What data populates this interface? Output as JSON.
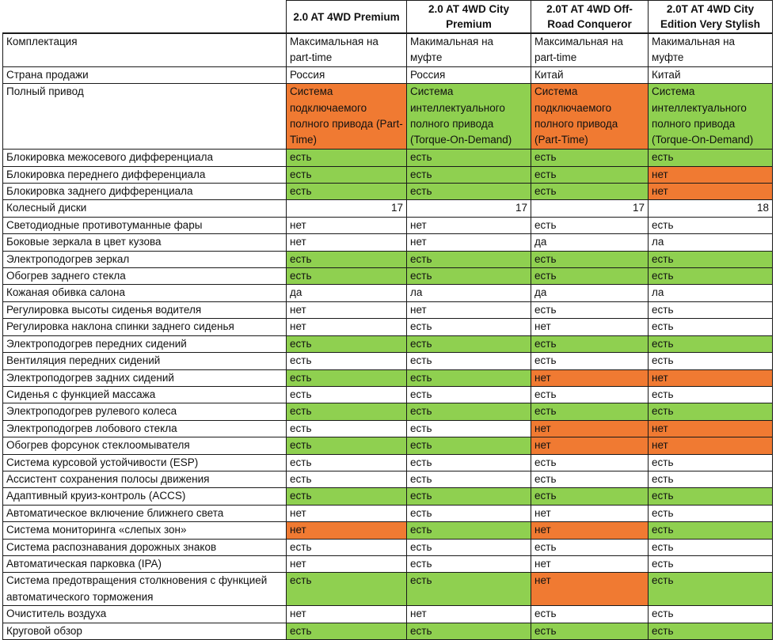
{
  "colors": {
    "green": "#8fd050",
    "orange": "#f07a32"
  },
  "headers": [
    "2.0 AT 4WD Premium",
    "2.0 AT 4WD City Premium",
    "2.0T AT 4WD Off-Road Conqueror",
    "2.0T AT 4WD City Edition Very Stylish"
  ],
  "rows": [
    {
      "label": "Комплектация",
      "cells": [
        "Максимальная на part-time",
        "Макимальная на муфте",
        "Максимальная на part-time",
        "Макимальная на муфте"
      ],
      "colors": [
        "",
        "",
        "",
        ""
      ]
    },
    {
      "label": "Страна продажи",
      "cells": [
        "Россия",
        "Россия",
        "Китай",
        "Китай"
      ],
      "colors": [
        "",
        "",
        "",
        ""
      ]
    },
    {
      "label": "Полный привод",
      "cells": [
        "Система подключаемого полного привода (Part-Time)",
        "Система интеллектуального полного привода (Torque-On-Demand)",
        "Система подключаемого полного привода (Part-Time)",
        "Система интеллектуального полного привода (Torque-On-Demand)"
      ],
      "colors": [
        "o",
        "g",
        "o",
        "g"
      ]
    },
    {
      "label": "Блокировка межосевого дифференциала",
      "cells": [
        "есть",
        "есть",
        "есть",
        "есть"
      ],
      "colors": [
        "g",
        "g",
        "g",
        "g"
      ]
    },
    {
      "label": "Блокировка переднего дифференциала",
      "cells": [
        "есть",
        "есть",
        "есть",
        "нет"
      ],
      "colors": [
        "g",
        "g",
        "g",
        "o"
      ]
    },
    {
      "label": "Блокировка заднего дифференциала",
      "cells": [
        "есть",
        "есть",
        "есть",
        "нет"
      ],
      "colors": [
        "g",
        "g",
        "g",
        "o"
      ]
    },
    {
      "label": "Колесный диски",
      "cells": [
        "17",
        "17",
        "17",
        "18"
      ],
      "colors": [
        "",
        "",
        "",
        ""
      ]
    },
    {
      "label": "Светодиодные противотуманные фары",
      "cells": [
        "нет",
        "нет",
        "есть",
        "есть"
      ],
      "colors": [
        "",
        "",
        "",
        ""
      ]
    },
    {
      "label": "Боковые зеркала в цвет кузова",
      "cells": [
        "нет",
        "нет",
        "да",
        "ла"
      ],
      "colors": [
        "",
        "",
        "",
        ""
      ]
    },
    {
      "label": "Электроподогрев зеркал",
      "cells": [
        "есть",
        "есть",
        "есть",
        "есть"
      ],
      "colors": [
        "g",
        "g",
        "g",
        "g"
      ]
    },
    {
      "label": "Обогрев заднего стекла",
      "cells": [
        "есть",
        "есть",
        "есть",
        "есть"
      ],
      "colors": [
        "g",
        "g",
        "g",
        "g"
      ]
    },
    {
      "label": "Кожаная обивка салона",
      "cells": [
        "да",
        "ла",
        "да",
        "ла"
      ],
      "colors": [
        "",
        "",
        "",
        ""
      ]
    },
    {
      "label": "Регулировка высоты сиденья водителя",
      "cells": [
        "нет",
        "нет",
        "есть",
        "есть"
      ],
      "colors": [
        "",
        "",
        "",
        ""
      ]
    },
    {
      "label": "Регулировка наклона спинки заднего сиденья",
      "cells": [
        "нет",
        "есть",
        "нет",
        "есть"
      ],
      "colors": [
        "",
        "",
        "",
        ""
      ]
    },
    {
      "label": "Электроподогрев передних сидений",
      "cells": [
        "есть",
        "есть",
        "есть",
        "есть"
      ],
      "colors": [
        "g",
        "g",
        "g",
        "g"
      ]
    },
    {
      "label": "Вентиляция передних сидений",
      "cells": [
        "есть",
        "есть",
        "есть",
        "есть"
      ],
      "colors": [
        "",
        "",
        "",
        ""
      ]
    },
    {
      "label": "Электроподогрев задних сидений",
      "cells": [
        "есть",
        "есть",
        "нет",
        "нет"
      ],
      "colors": [
        "g",
        "g",
        "o",
        "o"
      ]
    },
    {
      "label": "Сиденья с функцией массажа",
      "cells": [
        "есть",
        "есть",
        "есть",
        "есть"
      ],
      "colors": [
        "",
        "",
        "",
        ""
      ]
    },
    {
      "label": "Электроподогрев рулевого колеса",
      "cells": [
        "есть",
        "есть",
        "есть",
        "есть"
      ],
      "colors": [
        "g",
        "g",
        "g",
        "g"
      ]
    },
    {
      "label": "Электроподогрев лобового стекла",
      "cells": [
        "есть",
        "есть",
        "нет",
        "нет"
      ],
      "colors": [
        "",
        "",
        "o",
        "o"
      ]
    },
    {
      "label": "Обогрев форсунок стеклоомывателя",
      "cells": [
        "есть",
        "есть",
        "нет",
        "нет"
      ],
      "colors": [
        "g",
        "g",
        "o",
        "o"
      ]
    },
    {
      "label": "Система курсовой устойчивости (ESP)",
      "cells": [
        "есть",
        "есть",
        "есть",
        "есть"
      ],
      "colors": [
        "",
        "",
        "",
        ""
      ]
    },
    {
      "label": "Ассистент сохранения полосы движения",
      "cells": [
        "есть",
        "есть",
        "есть",
        "есть"
      ],
      "colors": [
        "",
        "",
        "",
        ""
      ]
    },
    {
      "label": "Адаптивный круиз-контроль (ACCS)",
      "cells": [
        "есть",
        "есть",
        "есть",
        "есть"
      ],
      "colors": [
        "g",
        "g",
        "g",
        "g"
      ]
    },
    {
      "label": "Автоматическое включение ближнего света",
      "cells": [
        "нет",
        "есть",
        "нет",
        "есть"
      ],
      "colors": [
        "",
        "",
        "",
        ""
      ]
    },
    {
      "label": "Система мониторинга «слепых зон»",
      "cells": [
        "нет",
        "есть",
        "нет",
        "есть"
      ],
      "colors": [
        "o",
        "g",
        "o",
        "g"
      ]
    },
    {
      "label": "Система распознавания дорожных знаков",
      "cells": [
        "есть",
        "есть",
        "есть",
        "есть"
      ],
      "colors": [
        "",
        "",
        "",
        ""
      ]
    },
    {
      "label": "Автоматическая парковка (IPA)",
      "cells": [
        "нет",
        "есть",
        "нет",
        "есть"
      ],
      "colors": [
        "",
        "",
        "",
        ""
      ]
    },
    {
      "label": "Система предотвращения столкновения с функцией автоматического торможения",
      "cells": [
        "есть",
        "есть",
        "нет",
        "есть"
      ],
      "colors": [
        "g",
        "g",
        "o",
        "g"
      ]
    },
    {
      "label": "Очиститель воздуха",
      "cells": [
        "нет",
        "нет",
        "есть",
        "есть"
      ],
      "colors": [
        "",
        "",
        "",
        ""
      ]
    },
    {
      "label": "Круговой обзор",
      "cells": [
        "есть",
        "есть",
        "есть",
        "есть"
      ],
      "colors": [
        "g",
        "g",
        "g",
        "g"
      ]
    }
  ]
}
